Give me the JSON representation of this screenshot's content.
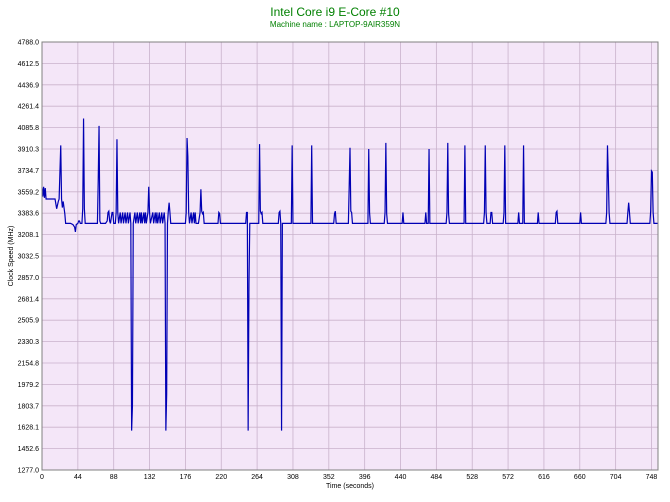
{
  "chart_data": {
    "type": "line",
    "title": "Intel Core i9 E-Core #10",
    "subtitle": "Machine name : LAPTOP-9AIR359N",
    "xlabel": "Time (seconds)",
    "ylabel": "Clock Speed (MHz)",
    "xlim": [
      0,
      756
    ],
    "ylim": [
      1277.0,
      4788.0
    ],
    "x_ticks": [
      0,
      44,
      88,
      132,
      176,
      220,
      264,
      308,
      352,
      396,
      440,
      484,
      528,
      572,
      616,
      660,
      704,
      748
    ],
    "y_ticks": [
      "1277.0",
      "1452.6",
      "1628.1",
      "1803.7",
      "1979.2",
      "2154.8",
      "2330.3",
      "2505.9",
      "2681.4",
      "2857.0",
      "3032.5",
      "3208.1",
      "3383.6",
      "3559.2",
      "3734.7",
      "3910.3",
      "4085.8",
      "4261.4",
      "4436.9",
      "4612.5",
      "4788.0"
    ],
    "grid": true,
    "colors": {
      "line": "#0000b4",
      "background": "#f4e6f8",
      "grid": "#c9b2cc",
      "title": "#008000"
    },
    "series": [
      {
        "values": [
          [
            0,
            3595
          ],
          [
            1,
            3520
          ],
          [
            2,
            3600
          ],
          [
            3,
            3510
          ],
          [
            4,
            3590
          ],
          [
            5,
            3500
          ],
          [
            8,
            3500
          ],
          [
            12,
            3500
          ],
          [
            16,
            3500
          ],
          [
            18,
            3420
          ],
          [
            20,
            3480
          ],
          [
            21,
            3500
          ],
          [
            23,
            3940
          ],
          [
            24,
            3500
          ],
          [
            25,
            3430
          ],
          [
            26,
            3480
          ],
          [
            28,
            3380
          ],
          [
            29,
            3300
          ],
          [
            31,
            3300
          ],
          [
            35,
            3300
          ],
          [
            38,
            3290
          ],
          [
            40,
            3270
          ],
          [
            41,
            3230
          ],
          [
            42,
            3290
          ],
          [
            44,
            3300
          ],
          [
            45,
            3320
          ],
          [
            46,
            3320
          ],
          [
            47,
            3300
          ],
          [
            49,
            3300
          ],
          [
            50,
            3420
          ],
          [
            51,
            4160
          ],
          [
            52,
            3420
          ],
          [
            53,
            3300
          ],
          [
            58,
            3300
          ],
          [
            62,
            3300
          ],
          [
            66,
            3300
          ],
          [
            68,
            3300
          ],
          [
            69,
            3650
          ],
          [
            70,
            4100
          ],
          [
            71,
            3320
          ],
          [
            72,
            3300
          ],
          [
            78,
            3300
          ],
          [
            80,
            3320
          ],
          [
            81,
            3390
          ],
          [
            82,
            3400
          ],
          [
            83,
            3320
          ],
          [
            84,
            3300
          ],
          [
            86,
            3390
          ],
          [
            87,
            3390
          ],
          [
            88,
            3300
          ],
          [
            90,
            3300
          ],
          [
            91,
            3390
          ],
          [
            92,
            3990
          ],
          [
            93,
            3390
          ],
          [
            94,
            3300
          ],
          [
            96,
            3390
          ],
          [
            97,
            3300
          ],
          [
            99,
            3390
          ],
          [
            100,
            3300
          ],
          [
            102,
            3390
          ],
          [
            103,
            3300
          ],
          [
            105,
            3390
          ],
          [
            106,
            3300
          ],
          [
            108,
            3390
          ],
          [
            109,
            3300
          ],
          [
            110,
            1600
          ],
          [
            111,
            1800
          ],
          [
            112,
            3300
          ],
          [
            114,
            3390
          ],
          [
            115,
            3300
          ],
          [
            117,
            3390
          ],
          [
            118,
            3300
          ],
          [
            120,
            3390
          ],
          [
            121,
            3300
          ],
          [
            122,
            3390
          ],
          [
            123,
            3300
          ],
          [
            125,
            3390
          ],
          [
            126,
            3300
          ],
          [
            127,
            3390
          ],
          [
            128,
            3300
          ],
          [
            130,
            3390
          ],
          [
            131,
            3600
          ],
          [
            132,
            3390
          ],
          [
            133,
            3300
          ],
          [
            136,
            3390
          ],
          [
            137,
            3300
          ],
          [
            139,
            3390
          ],
          [
            140,
            3300
          ],
          [
            141,
            3390
          ],
          [
            142,
            3300
          ],
          [
            144,
            3390
          ],
          [
            145,
            3300
          ],
          [
            147,
            3390
          ],
          [
            148,
            3300
          ],
          [
            150,
            3390
          ],
          [
            151,
            3300
          ],
          [
            152,
            1600
          ],
          [
            153,
            1900
          ],
          [
            154,
            3300
          ],
          [
            155,
            3400
          ],
          [
            156,
            3470
          ],
          [
            157,
            3390
          ],
          [
            158,
            3300
          ],
          [
            162,
            3300
          ],
          [
            166,
            3300
          ],
          [
            170,
            3300
          ],
          [
            174,
            3300
          ],
          [
            176,
            3300
          ],
          [
            177,
            3390
          ],
          [
            178,
            4000
          ],
          [
            179,
            3850
          ],
          [
            180,
            3390
          ],
          [
            181,
            3300
          ],
          [
            183,
            3390
          ],
          [
            184,
            3300
          ],
          [
            186,
            3390
          ],
          [
            187,
            3300
          ],
          [
            188,
            3390
          ],
          [
            189,
            3300
          ],
          [
            192,
            3300
          ],
          [
            194,
            3390
          ],
          [
            195,
            3580
          ],
          [
            196,
            3400
          ],
          [
            197,
            3380
          ],
          [
            198,
            3390
          ],
          [
            199,
            3300
          ],
          [
            204,
            3300
          ],
          [
            210,
            3300
          ],
          [
            214,
            3300
          ],
          [
            216,
            3300
          ],
          [
            217,
            3390
          ],
          [
            218,
            3380
          ],
          [
            219,
            3300
          ],
          [
            222,
            3300
          ],
          [
            226,
            3300
          ],
          [
            232,
            3300
          ],
          [
            236,
            3300
          ],
          [
            240,
            3300
          ],
          [
            244,
            3300
          ],
          [
            248,
            3300
          ],
          [
            250,
            3300
          ],
          [
            251,
            3390
          ],
          [
            252,
            3390
          ],
          [
            253,
            1600
          ],
          [
            254,
            2800
          ],
          [
            255,
            3300
          ],
          [
            256,
            3300
          ],
          [
            260,
            3300
          ],
          [
            264,
            3300
          ],
          [
            266,
            3300
          ],
          [
            267,
            3950
          ],
          [
            268,
            3400
          ],
          [
            269,
            3380
          ],
          [
            270,
            3390
          ],
          [
            271,
            3300
          ],
          [
            276,
            3300
          ],
          [
            280,
            3300
          ],
          [
            284,
            3300
          ],
          [
            290,
            3300
          ],
          [
            291,
            3390
          ],
          [
            292,
            3400
          ],
          [
            293,
            3300
          ],
          [
            294,
            1600
          ],
          [
            295,
            3300
          ],
          [
            296,
            3300
          ],
          [
            300,
            3300
          ],
          [
            306,
            3300
          ],
          [
            307,
            3940
          ],
          [
            308,
            3300
          ],
          [
            312,
            3300
          ],
          [
            318,
            3300
          ],
          [
            324,
            3300
          ],
          [
            330,
            3300
          ],
          [
            331,
            3940
          ],
          [
            332,
            3300
          ],
          [
            336,
            3300
          ],
          [
            342,
            3300
          ],
          [
            348,
            3300
          ],
          [
            354,
            3300
          ],
          [
            358,
            3300
          ],
          [
            359,
            3380
          ],
          [
            360,
            3400
          ],
          [
            361,
            3300
          ],
          [
            366,
            3300
          ],
          [
            372,
            3300
          ],
          [
            376,
            3300
          ],
          [
            377,
            3600
          ],
          [
            378,
            3920
          ],
          [
            379,
            3400
          ],
          [
            380,
            3390
          ],
          [
            381,
            3300
          ],
          [
            386,
            3300
          ],
          [
            392,
            3300
          ],
          [
            398,
            3300
          ],
          [
            400,
            3300
          ],
          [
            401,
            3910
          ],
          [
            402,
            3390
          ],
          [
            403,
            3300
          ],
          [
            408,
            3300
          ],
          [
            414,
            3300
          ],
          [
            418,
            3300
          ],
          [
            420,
            3300
          ],
          [
            421,
            3390
          ],
          [
            422,
            3960
          ],
          [
            423,
            3380
          ],
          [
            424,
            3300
          ],
          [
            430,
            3300
          ],
          [
            436,
            3300
          ],
          [
            440,
            3300
          ],
          [
            442,
            3300
          ],
          [
            443,
            3390
          ],
          [
            444,
            3300
          ],
          [
            448,
            3300
          ],
          [
            454,
            3300
          ],
          [
            460,
            3300
          ],
          [
            466,
            3300
          ],
          [
            470,
            3300
          ],
          [
            471,
            3390
          ],
          [
            472,
            3300
          ],
          [
            474,
            3300
          ],
          [
            475,
            3910
          ],
          [
            476,
            3300
          ],
          [
            480,
            3300
          ],
          [
            486,
            3300
          ],
          [
            492,
            3300
          ],
          [
            496,
            3300
          ],
          [
            497,
            3390
          ],
          [
            498,
            3960
          ],
          [
            499,
            3380
          ],
          [
            500,
            3300
          ],
          [
            506,
            3300
          ],
          [
            512,
            3300
          ],
          [
            518,
            3300
          ],
          [
            519,
            3940
          ],
          [
            520,
            3300
          ],
          [
            524,
            3300
          ],
          [
            530,
            3300
          ],
          [
            536,
            3300
          ],
          [
            542,
            3300
          ],
          [
            543,
            3390
          ],
          [
            544,
            3940
          ],
          [
            545,
            3390
          ],
          [
            546,
            3300
          ],
          [
            550,
            3300
          ],
          [
            551,
            3390
          ],
          [
            552,
            3390
          ],
          [
            553,
            3300
          ],
          [
            558,
            3300
          ],
          [
            564,
            3300
          ],
          [
            566,
            3300
          ],
          [
            567,
            3390
          ],
          [
            568,
            3940
          ],
          [
            569,
            3300
          ],
          [
            574,
            3300
          ],
          [
            580,
            3300
          ],
          [
            584,
            3300
          ],
          [
            585,
            3390
          ],
          [
            586,
            3300
          ],
          [
            590,
            3300
          ],
          [
            591,
            3940
          ],
          [
            592,
            3300
          ],
          [
            598,
            3300
          ],
          [
            604,
            3300
          ],
          [
            608,
            3300
          ],
          [
            609,
            3390
          ],
          [
            610,
            3300
          ],
          [
            616,
            3300
          ],
          [
            622,
            3300
          ],
          [
            628,
            3300
          ],
          [
            630,
            3300
          ],
          [
            631,
            3390
          ],
          [
            632,
            3400
          ],
          [
            633,
            3300
          ],
          [
            638,
            3300
          ],
          [
            644,
            3300
          ],
          [
            650,
            3300
          ],
          [
            656,
            3300
          ],
          [
            660,
            3300
          ],
          [
            661,
            3390
          ],
          [
            662,
            3300
          ],
          [
            668,
            3300
          ],
          [
            674,
            3300
          ],
          [
            680,
            3300
          ],
          [
            686,
            3300
          ],
          [
            692,
            3300
          ],
          [
            693,
            3390
          ],
          [
            694,
            3940
          ],
          [
            695,
            3690
          ],
          [
            696,
            3390
          ],
          [
            697,
            3300
          ],
          [
            700,
            3300
          ],
          [
            706,
            3300
          ],
          [
            712,
            3300
          ],
          [
            718,
            3300
          ],
          [
            719,
            3390
          ],
          [
            720,
            3470
          ],
          [
            721,
            3390
          ],
          [
            722,
            3300
          ],
          [
            726,
            3300
          ],
          [
            730,
            3300
          ],
          [
            736,
            3300
          ],
          [
            742,
            3300
          ],
          [
            746,
            3300
          ],
          [
            747,
            3400
          ],
          [
            748,
            3730
          ],
          [
            749,
            3720
          ],
          [
            750,
            3390
          ],
          [
            751,
            3300
          ],
          [
            756,
            3300
          ]
        ]
      }
    ]
  }
}
